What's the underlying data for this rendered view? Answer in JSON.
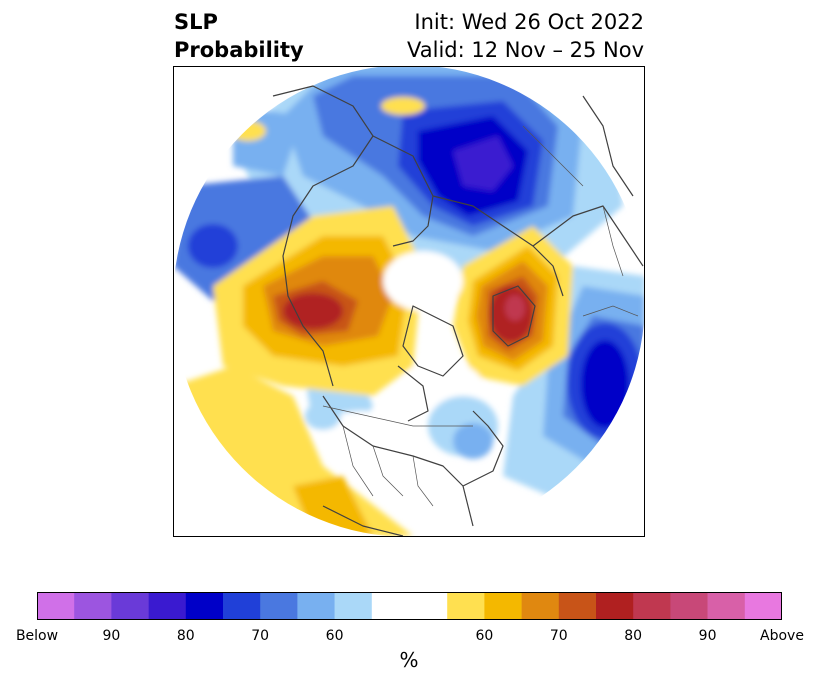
{
  "title": {
    "line1_left": "SLP",
    "line2_left": "Probability",
    "line1_right": "Init: Wed 26 Oct 2022",
    "line2_right": "Valid: 12 Nov – 25 Nov"
  },
  "colorbar": {
    "unit": "%",
    "tick_labels": [
      "Below",
      "90",
      "80",
      "70",
      "60",
      "60",
      "70",
      "80",
      "90",
      "Above"
    ],
    "below_colors": [
      "#d070e8",
      "#9c55e0",
      "#6a3ad8",
      "#3a1ad0",
      "#0000c8",
      "#2040d8",
      "#4a78e0",
      "#78b0f0",
      "#aad8f8"
    ],
    "neutral_color": "#ffffff",
    "above_colors": [
      "#ffe050",
      "#f4b800",
      "#e08810",
      "#c85418",
      "#b02020",
      "#c03850",
      "#c84878",
      "#d860a8",
      "#e878e0"
    ]
  },
  "colors": {
    "land_outline": "#404040",
    "frame": "#000000"
  }
}
